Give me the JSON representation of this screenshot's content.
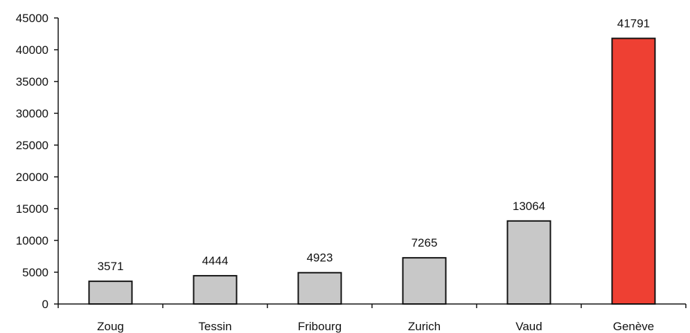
{
  "chart_data": {
    "type": "bar",
    "title": "",
    "xlabel": "",
    "ylabel": "",
    "categories": [
      "Zoug",
      "Tessin",
      "Fribourg",
      "Zurich",
      "Vaud",
      "Genève"
    ],
    "values": [
      3571,
      4444,
      4923,
      7265,
      13064,
      41791
    ],
    "data_labels": [
      "3571",
      "4444",
      "4923",
      "7265",
      "13064",
      "41791"
    ],
    "ylim": [
      0,
      45000
    ],
    "yticks": [
      0,
      5000,
      10000,
      15000,
      20000,
      25000,
      30000,
      35000,
      40000,
      45000
    ],
    "ytick_labels": [
      "0",
      "5000",
      "10000",
      "15000",
      "20000",
      "25000",
      "30000",
      "35000",
      "40000",
      "45000"
    ],
    "grid": false,
    "legend": "none",
    "colors": {
      "default_bar": "#c8c8c8",
      "highlight_bar": "#ee4033",
      "bar_outline": "#111111",
      "axis": "#111111"
    },
    "highlight_index": 5
  }
}
